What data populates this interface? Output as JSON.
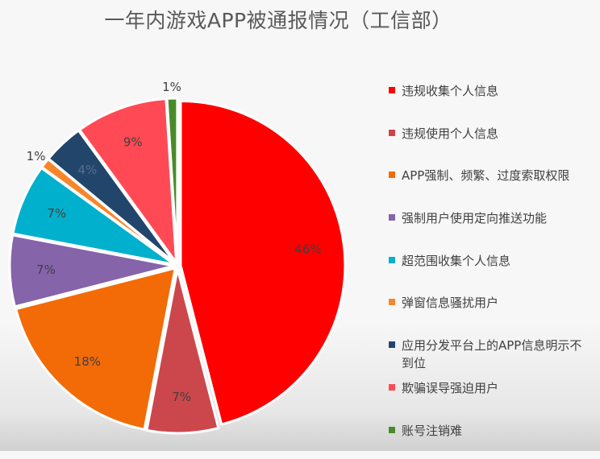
{
  "title": "一年内游戏APP被通报情况（工信部）",
  "chart_data": {
    "type": "pie",
    "title": "一年内游戏APP被通报情况（工信部）",
    "start_angle_deg": 0,
    "direction": "clockwise",
    "legend_position": "right",
    "slices": [
      {
        "label": "违规收集个人信息",
        "value": 46,
        "value_label": "46%",
        "color": "#ff0000",
        "label_color": "#404040"
      },
      {
        "label": "违规使用个人信息",
        "value": 7,
        "value_label": "7%",
        "color": "#cc474b",
        "label_color": "#404040"
      },
      {
        "label": "APP强制、频繁、过度索取权限",
        "value": 18,
        "value_label": "18%",
        "color": "#f26b06",
        "label_color": "#404040"
      },
      {
        "label": "强制用户使用定向推送功能",
        "value": 7,
        "value_label": "7%",
        "color": "#8564a9",
        "label_color": "#404040"
      },
      {
        "label": "超范围收集个人信息",
        "value": 7,
        "value_label": "7%",
        "color": "#00b0cc",
        "label_color": "#404040"
      },
      {
        "label": "弹窗信息骚扰用户",
        "value": 1,
        "value_label": "1%",
        "color": "#f7862a",
        "label_color": "#404040"
      },
      {
        "label": "应用分发平台上的APP信息明示不到位",
        "value": 4,
        "value_label": "4%",
        "color": "#22456b",
        "label_color": "#5a6f88"
      },
      {
        "label": "欺骗误导强迫用户",
        "value": 9,
        "value_label": "9%",
        "color": "#ff4a55",
        "label_color": "#404040"
      },
      {
        "label": "账号注销难",
        "value": 1,
        "value_label": "1%",
        "color": "#4a8a2a",
        "label_color": "#404040"
      }
    ]
  }
}
